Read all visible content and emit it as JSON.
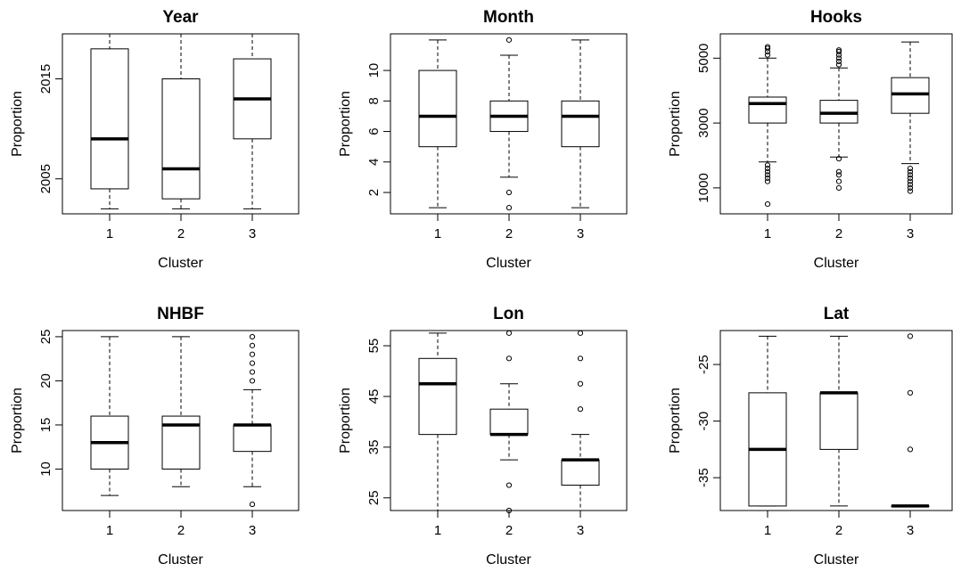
{
  "chart_data": [
    {
      "type": "box",
      "title": "Year",
      "xlabel": "Cluster",
      "ylabel": "Proportion",
      "categories": [
        "1",
        "2",
        "3"
      ],
      "ylim": [
        2001.5,
        2019.5
      ],
      "yticks": [
        2005,
        2015
      ],
      "ytick_labels": [
        "2005",
        "2015"
      ],
      "boxes": [
        {
          "whisker_low": 2002,
          "q1": 2004,
          "median": 2009,
          "q3": 2018,
          "whisker_high": 2020,
          "outliers": []
        },
        {
          "whisker_low": 2002,
          "q1": 2003,
          "median": 2006,
          "q3": 2015,
          "whisker_high": 2020,
          "outliers": []
        },
        {
          "whisker_low": 2002,
          "q1": 2009,
          "median": 2013,
          "q3": 2017,
          "whisker_high": 2020,
          "outliers": []
        }
      ]
    },
    {
      "type": "box",
      "title": "Month",
      "xlabel": "Cluster",
      "ylabel": "Proportion",
      "categories": [
        "1",
        "2",
        "3"
      ],
      "ylim": [
        0.6,
        12.4
      ],
      "yticks": [
        2,
        4,
        6,
        8,
        10
      ],
      "ytick_labels": [
        "2",
        "4",
        "6",
        "8",
        "10"
      ],
      "boxes": [
        {
          "whisker_low": 1,
          "q1": 5,
          "median": 7,
          "q3": 10,
          "whisker_high": 12,
          "outliers": []
        },
        {
          "whisker_low": 3,
          "q1": 6,
          "median": 7,
          "q3": 8,
          "whisker_high": 11,
          "outliers": [
            1,
            2,
            12
          ]
        },
        {
          "whisker_low": 1,
          "q1": 5,
          "median": 7,
          "q3": 8,
          "whisker_high": 12,
          "outliers": []
        }
      ]
    },
    {
      "type": "box",
      "title": "Hooks",
      "xlabel": "Cluster",
      "ylabel": "Proportion",
      "categories": [
        "1",
        "2",
        "3"
      ],
      "ylim": [
        200,
        5750
      ],
      "yticks": [
        1000,
        3000,
        5000
      ],
      "ytick_labels": [
        "1000",
        "3000",
        "5000"
      ],
      "boxes": [
        {
          "whisker_low": 1800,
          "q1": 3000,
          "median": 3600,
          "q3": 3800,
          "whisker_high": 5000,
          "outliers": [
            1200,
            1300,
            1400,
            1500,
            1600,
            1700,
            5100,
            5200,
            5300,
            5350,
            500
          ]
        },
        {
          "whisker_low": 1950,
          "q1": 3000,
          "median": 3300,
          "q3": 3700,
          "whisker_high": 4700,
          "outliers": [
            1000,
            1200,
            1400,
            1500,
            1900,
            4800,
            4900,
            5000,
            5100,
            5200,
            5250
          ]
        },
        {
          "whisker_low": 1750,
          "q1": 3300,
          "median": 3900,
          "q3": 4400,
          "whisker_high": 5500,
          "outliers": [
            900,
            1000,
            1100,
            1200,
            1300,
            1400,
            1500,
            1600
          ]
        }
      ]
    },
    {
      "type": "box",
      "title": "NHBF",
      "xlabel": "Cluster",
      "ylabel": "Proportion",
      "categories": [
        "1",
        "2",
        "3"
      ],
      "ylim": [
        5.3,
        25.7
      ],
      "yticks": [
        10,
        15,
        20,
        25
      ],
      "ytick_labels": [
        "10",
        "15",
        "20",
        "25"
      ],
      "boxes": [
        {
          "whisker_low": 7,
          "q1": 10,
          "median": 13,
          "q3": 16,
          "whisker_high": 25,
          "outliers": []
        },
        {
          "whisker_low": 8,
          "q1": 10,
          "median": 15,
          "q3": 16,
          "whisker_high": 25,
          "outliers": []
        },
        {
          "whisker_low": 8,
          "q1": 12,
          "median": 15,
          "q3": 15,
          "whisker_high": 19,
          "outliers": [
            6,
            20,
            21,
            22,
            23,
            24,
            25
          ]
        }
      ]
    },
    {
      "type": "box",
      "title": "Lon",
      "xlabel": "Cluster",
      "ylabel": "Proportion",
      "categories": [
        "1",
        "2",
        "3"
      ],
      "ylim": [
        22.5,
        58
      ],
      "yticks": [
        25,
        35,
        45,
        55
      ],
      "ytick_labels": [
        "25",
        "35",
        "45",
        "55"
      ],
      "boxes": [
        {
          "whisker_low": 22.5,
          "q1": 37.5,
          "median": 47.5,
          "q3": 52.5,
          "whisker_high": 57.5,
          "outliers": []
        },
        {
          "whisker_low": 32.5,
          "q1": 37.5,
          "median": 37.5,
          "q3": 42.5,
          "whisker_high": 47.5,
          "outliers": [
            22.5,
            27.5,
            52.5,
            57.5
          ]
        },
        {
          "whisker_low": 22.5,
          "q1": 27.5,
          "median": 32.5,
          "q3": 32.5,
          "whisker_high": 37.5,
          "outliers": [
            42.5,
            47.5,
            52.5,
            57.5
          ]
        }
      ]
    },
    {
      "type": "box",
      "title": "Lat",
      "xlabel": "Cluster",
      "ylabel": "Proportion",
      "categories": [
        "1",
        "2",
        "3"
      ],
      "ylim": [
        -37.9,
        -22
      ],
      "yticks": [
        -35,
        -30,
        -25
      ],
      "ytick_labels": [
        "-35",
        "-30",
        "-25"
      ],
      "boxes": [
        {
          "whisker_low": -37.5,
          "q1": -37.5,
          "median": -32.5,
          "q3": -27.5,
          "whisker_high": -22.5,
          "outliers": []
        },
        {
          "whisker_low": -37.5,
          "q1": -32.5,
          "median": -27.5,
          "q3": -27.5,
          "whisker_high": -22.5,
          "outliers": []
        },
        {
          "whisker_low": -37.5,
          "q1": -37.5,
          "median": -37.5,
          "q3": -37.5,
          "whisker_high": -37.5,
          "outliers": [
            -32.5,
            -27.5,
            -22.5
          ]
        }
      ]
    }
  ]
}
